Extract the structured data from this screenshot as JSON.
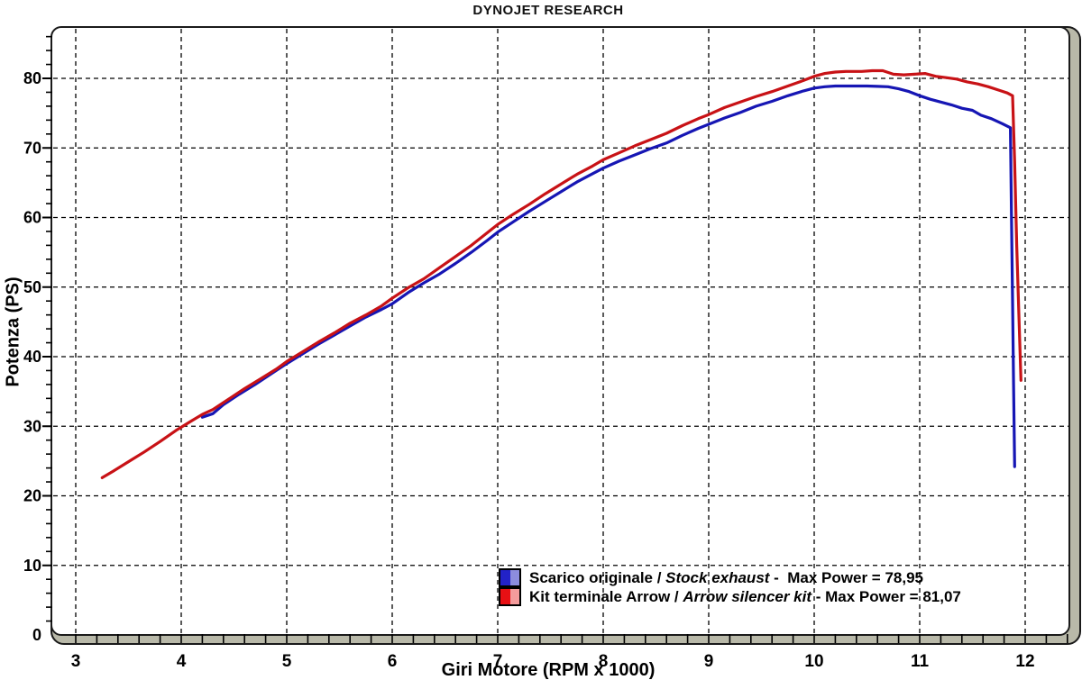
{
  "title": "DYNOJET RESEARCH",
  "chart_data": {
    "type": "line",
    "title": "DYNOJET RESEARCH",
    "xlabel": "Giri Motore (RPM x 1000)",
    "ylabel": "Potenza (PS)",
    "xlim": [
      3,
      12.4
    ],
    "ylim": [
      0,
      87
    ],
    "x_ticks": [
      3,
      4,
      5,
      6,
      7,
      8,
      9,
      10,
      11,
      12
    ],
    "y_ticks": [
      0,
      10,
      20,
      30,
      40,
      50,
      60,
      70,
      80
    ],
    "x_minor_step": 0.2,
    "y_minor_step": 2,
    "grid": "dashed-both-major",
    "legend_position": "inside-bottom-center",
    "series": [
      {
        "name": "Scarico originale / Stock exhaust",
        "max_power": "78,95",
        "color": "#1616b4",
        "points": [
          [
            4.2,
            31.3
          ],
          [
            4.3,
            31.8
          ],
          [
            4.4,
            33.1
          ],
          [
            4.55,
            34.6
          ],
          [
            4.7,
            36.0
          ],
          [
            4.85,
            37.5
          ],
          [
            5.0,
            39.0
          ],
          [
            5.15,
            40.4
          ],
          [
            5.3,
            41.8
          ],
          [
            5.45,
            43.1
          ],
          [
            5.6,
            44.4
          ],
          [
            5.75,
            45.7
          ],
          [
            5.9,
            46.8
          ],
          [
            6.0,
            47.6
          ],
          [
            6.15,
            49.2
          ],
          [
            6.3,
            50.6
          ],
          [
            6.45,
            51.9
          ],
          [
            6.6,
            53.4
          ],
          [
            6.75,
            55.0
          ],
          [
            6.9,
            56.7
          ],
          [
            7.0,
            57.9
          ],
          [
            7.15,
            59.4
          ],
          [
            7.3,
            60.9
          ],
          [
            7.45,
            62.3
          ],
          [
            7.6,
            63.7
          ],
          [
            7.75,
            65.1
          ],
          [
            7.9,
            66.3
          ],
          [
            8.0,
            67.1
          ],
          [
            8.15,
            68.1
          ],
          [
            8.3,
            69.0
          ],
          [
            8.45,
            69.9
          ],
          [
            8.6,
            70.7
          ],
          [
            8.75,
            71.8
          ],
          [
            8.9,
            72.8
          ],
          [
            9.0,
            73.4
          ],
          [
            9.15,
            74.3
          ],
          [
            9.3,
            75.1
          ],
          [
            9.45,
            76.0
          ],
          [
            9.6,
            76.7
          ],
          [
            9.75,
            77.5
          ],
          [
            9.9,
            78.2
          ],
          [
            10.0,
            78.6
          ],
          [
            10.1,
            78.8
          ],
          [
            10.2,
            78.9
          ],
          [
            10.35,
            78.9
          ],
          [
            10.5,
            78.9
          ],
          [
            10.6,
            78.85
          ],
          [
            10.7,
            78.8
          ],
          [
            10.8,
            78.5
          ],
          [
            10.9,
            78.1
          ],
          [
            11.0,
            77.5
          ],
          [
            11.1,
            77.0
          ],
          [
            11.2,
            76.6
          ],
          [
            11.3,
            76.2
          ],
          [
            11.4,
            75.7
          ],
          [
            11.5,
            75.4
          ],
          [
            11.58,
            74.7
          ],
          [
            11.68,
            74.2
          ],
          [
            11.78,
            73.5
          ],
          [
            11.86,
            72.9
          ],
          [
            11.87,
            60.0
          ],
          [
            11.88,
            48.0
          ],
          [
            11.89,
            36.0
          ],
          [
            11.9,
            24.2
          ]
        ]
      },
      {
        "name": "Kit terminale Arrow / Arrow silencer kit",
        "max_power": "81,07",
        "color": "#c81216",
        "points": [
          [
            3.25,
            22.6
          ],
          [
            3.35,
            23.5
          ],
          [
            3.5,
            24.9
          ],
          [
            3.65,
            26.3
          ],
          [
            3.8,
            27.8
          ],
          [
            3.95,
            29.4
          ],
          [
            4.1,
            30.8
          ],
          [
            4.2,
            31.7
          ],
          [
            4.3,
            32.4
          ],
          [
            4.45,
            33.9
          ],
          [
            4.6,
            35.4
          ],
          [
            4.75,
            36.8
          ],
          [
            4.9,
            38.2
          ],
          [
            5.0,
            39.3
          ],
          [
            5.15,
            40.7
          ],
          [
            5.3,
            42.1
          ],
          [
            5.45,
            43.4
          ],
          [
            5.6,
            44.8
          ],
          [
            5.75,
            46.0
          ],
          [
            5.9,
            47.3
          ],
          [
            6.0,
            48.4
          ],
          [
            6.15,
            49.9
          ],
          [
            6.3,
            51.2
          ],
          [
            6.45,
            52.8
          ],
          [
            6.6,
            54.4
          ],
          [
            6.75,
            56.0
          ],
          [
            6.9,
            57.8
          ],
          [
            7.0,
            59.0
          ],
          [
            7.15,
            60.5
          ],
          [
            7.3,
            61.9
          ],
          [
            7.45,
            63.4
          ],
          [
            7.6,
            64.8
          ],
          [
            7.75,
            66.2
          ],
          [
            7.9,
            67.4
          ],
          [
            8.0,
            68.3
          ],
          [
            8.15,
            69.3
          ],
          [
            8.3,
            70.3
          ],
          [
            8.45,
            71.2
          ],
          [
            8.6,
            72.1
          ],
          [
            8.75,
            73.2
          ],
          [
            8.9,
            74.2
          ],
          [
            9.0,
            74.8
          ],
          [
            9.15,
            75.8
          ],
          [
            9.3,
            76.6
          ],
          [
            9.45,
            77.4
          ],
          [
            9.6,
            78.1
          ],
          [
            9.75,
            78.9
          ],
          [
            9.9,
            79.7
          ],
          [
            10.0,
            80.3
          ],
          [
            10.1,
            80.7
          ],
          [
            10.2,
            80.9
          ],
          [
            10.3,
            81.0
          ],
          [
            10.45,
            81.0
          ],
          [
            10.55,
            81.1
          ],
          [
            10.65,
            81.1
          ],
          [
            10.75,
            80.6
          ],
          [
            10.85,
            80.5
          ],
          [
            10.95,
            80.6
          ],
          [
            11.05,
            80.7
          ],
          [
            11.15,
            80.3
          ],
          [
            11.25,
            80.1
          ],
          [
            11.35,
            79.9
          ],
          [
            11.45,
            79.5
          ],
          [
            11.55,
            79.2
          ],
          [
            11.65,
            78.8
          ],
          [
            11.75,
            78.3
          ],
          [
            11.83,
            77.9
          ],
          [
            11.88,
            77.5
          ],
          [
            11.9,
            68.0
          ],
          [
            11.92,
            56.0
          ],
          [
            11.94,
            46.0
          ],
          [
            11.96,
            36.6
          ]
        ]
      }
    ]
  },
  "legend": [
    {
      "it": "Scarico originale",
      "sep": " / ",
      "en": "Stock exhaust",
      "suffix": " -  Max Power = 78,95",
      "swatch_left": "#2222c8",
      "swatch_right": "#8c8cde"
    },
    {
      "it": "Kit terminale Arrow",
      "sep": " / ",
      "en": "Arrow silencer kit",
      "suffix": " - Max Power = 81,07",
      "swatch_left": "#e81014",
      "swatch_right": "#f59c9c"
    }
  ],
  "colors": {
    "frame_shadow": "#b9b9a9",
    "frame_line": "#1a1a1a",
    "grid": "#000000",
    "background": "#ffffff",
    "blue_curve": "#1616b4",
    "red_curve": "#c81216"
  }
}
